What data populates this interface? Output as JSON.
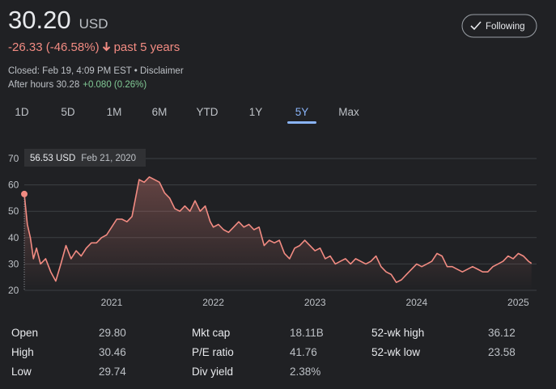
{
  "header": {
    "price": "30.20",
    "currency": "USD",
    "change": "-26.33 (-46.58%)",
    "period": "past 5 years",
    "closed": "Closed: Feb 19, 4:09 PM EST • Disclaimer",
    "after_hours": "After hours 30.28",
    "after_hours_change": "+0.080 (0.26%)",
    "follow_button": "Following"
  },
  "ranges": [
    "1D",
    "5D",
    "1M",
    "6M",
    "YTD",
    "1Y",
    "5Y",
    "Max"
  ],
  "selected_range": "5Y",
  "chart_data": {
    "type": "line",
    "tooltip": {
      "value": "56.53 USD",
      "date": "Feb 21, 2020"
    },
    "x": [
      2020.14,
      2020.17,
      2020.2,
      2020.23,
      2020.26,
      2020.3,
      2020.35,
      2020.4,
      2020.45,
      2020.5,
      2020.55,
      2020.6,
      2020.65,
      2020.7,
      2020.75,
      2020.8,
      2020.85,
      2020.9,
      2020.95,
      2021.0,
      2021.05,
      2021.1,
      2021.15,
      2021.2,
      2021.22,
      2021.27,
      2021.32,
      2021.37,
      2021.42,
      2021.47,
      2021.52,
      2021.57,
      2021.62,
      2021.67,
      2021.72,
      2021.77,
      2021.82,
      2021.87,
      2021.92,
      2021.97,
      2022.0,
      2022.05,
      2022.1,
      2022.15,
      2022.2,
      2022.25,
      2022.3,
      2022.35,
      2022.4,
      2022.45,
      2022.5,
      2022.55,
      2022.6,
      2022.65,
      2022.7,
      2022.75,
      2022.8,
      2022.85,
      2022.9,
      2022.95,
      2023.0,
      2023.05,
      2023.1,
      2023.15,
      2023.2,
      2023.25,
      2023.3,
      2023.35,
      2023.4,
      2023.45,
      2023.5,
      2023.55,
      2023.6,
      2023.65,
      2023.7,
      2023.75,
      2023.8,
      2023.85,
      2023.9,
      2023.95,
      2024.0,
      2024.05,
      2024.1,
      2024.15,
      2024.2,
      2024.25,
      2024.3,
      2024.35,
      2024.4,
      2024.45,
      2024.5,
      2024.55,
      2024.6,
      2024.65,
      2024.7,
      2024.75,
      2024.8,
      2024.85,
      2024.9,
      2024.95,
      2025.0,
      2025.05,
      2025.1,
      2025.13
    ],
    "series": [
      {
        "name": "Price",
        "color": "#f28b82",
        "values": [
          56.53,
          45,
          40,
          32,
          36,
          30,
          32,
          27,
          23.5,
          30,
          37,
          32,
          35,
          33,
          36,
          38,
          38,
          40,
          41,
          44,
          47,
          47,
          46,
          48,
          52,
          62,
          61,
          63,
          62,
          61,
          57,
          55,
          51,
          50,
          52,
          50,
          54,
          50,
          52,
          46,
          44,
          45,
          43,
          42,
          44,
          46,
          44,
          45,
          43,
          44,
          37,
          39,
          38,
          39,
          34,
          32,
          36,
          37,
          39,
          37,
          35,
          36,
          32,
          33,
          30,
          31,
          32,
          30,
          32,
          31,
          30,
          31,
          33,
          29,
          27,
          26,
          23,
          24,
          26,
          28,
          30,
          29,
          30,
          31,
          34,
          33,
          29,
          29,
          28,
          27,
          28,
          29,
          28,
          27,
          27,
          29,
          30,
          31,
          33,
          32,
          34,
          33,
          31,
          30.2
        ]
      }
    ],
    "xlim": [
      2020.14,
      2025.18
    ],
    "xticks": [
      2021,
      2022,
      2023,
      2024,
      2025
    ],
    "ylim": [
      20,
      70
    ],
    "yticks": [
      20,
      30,
      40,
      50,
      60,
      70
    ],
    "grid": true
  },
  "stats": [
    [
      "Open",
      "29.80"
    ],
    [
      "High",
      "30.46"
    ],
    [
      "Low",
      "29.74"
    ],
    [
      "Mkt cap",
      "18.11B"
    ],
    [
      "P/E ratio",
      "41.76"
    ],
    [
      "Div yield",
      "2.38%"
    ],
    [
      "52-wk high",
      "36.12"
    ],
    [
      "52-wk low",
      "23.58"
    ]
  ]
}
